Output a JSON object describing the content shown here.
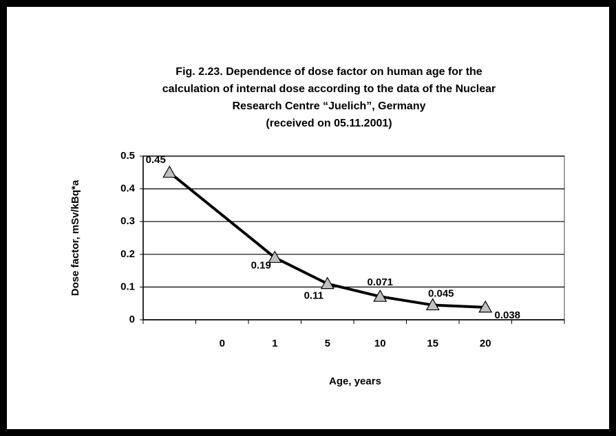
{
  "chart_data": {
    "type": "line",
    "title": [
      "Fig. 2.23. Dependence of dose factor on human age for the",
      "calculation of internal dose according to the data of the Nuclear",
      "Research Centre “Juelich”, Germany",
      "(received on 05.11.2001)"
    ],
    "x_label": "Age, years",
    "y_label": "Dose factor, mSv/kBq*a",
    "categories": [
      null,
      "0",
      "1",
      "5",
      "10",
      "15",
      "20",
      null
    ],
    "series": [
      {
        "name": null,
        "color": "#000000",
        "marker_color": "#c0c0c0",
        "values": [
          0.45,
          null,
          0.19,
          0.11,
          0.071,
          0.045,
          0.038,
          null
        ]
      }
    ],
    "connect_gaps": true,
    "ylim": [
      0,
      0.5
    ],
    "yticks": [
      0,
      0.1,
      0.2,
      0.3,
      0.4,
      0.5
    ],
    "grid": true
  }
}
